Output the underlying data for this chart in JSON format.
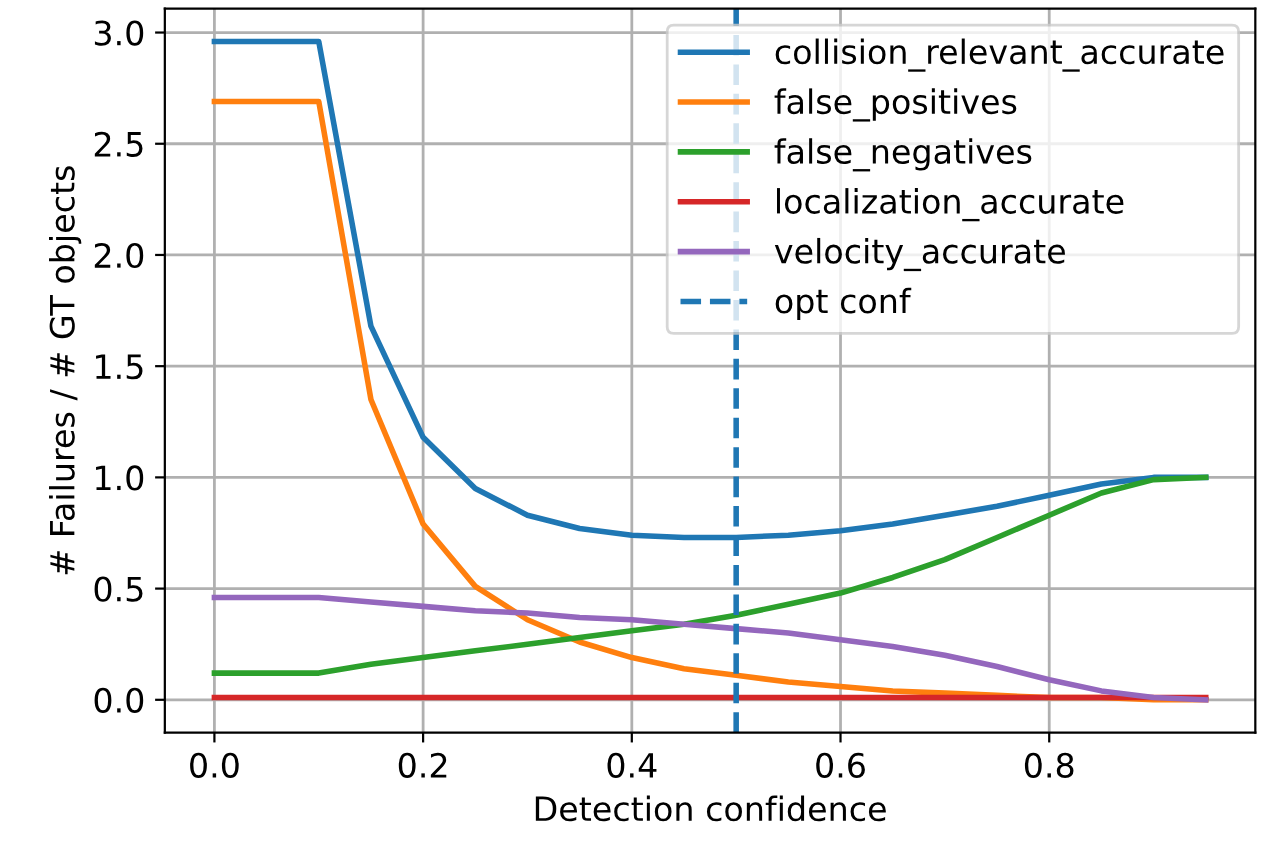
{
  "chart_data": {
    "type": "line",
    "xlabel": "Detection confidence",
    "ylabel": "# Failures / # GT objects",
    "x": [
      0,
      0.05,
      0.1,
      0.15,
      0.2,
      0.25,
      0.3,
      0.35,
      0.4,
      0.45,
      0.5,
      0.55,
      0.6,
      0.65,
      0.7,
      0.75,
      0.8,
      0.85,
      0.9,
      0.95
    ],
    "series": [
      {
        "name": "collision_relevant_accurate",
        "color": "#1f77b4",
        "values": [
          2.96,
          2.96,
          2.96,
          1.68,
          1.18,
          0.95,
          0.83,
          0.77,
          0.74,
          0.73,
          0.73,
          0.74,
          0.76,
          0.79,
          0.83,
          0.87,
          0.92,
          0.97,
          1.0,
          1.0
        ]
      },
      {
        "name": "false_positives",
        "color": "#ff7f0e",
        "values": [
          2.69,
          2.69,
          2.69,
          1.35,
          0.79,
          0.51,
          0.36,
          0.26,
          0.19,
          0.14,
          0.11,
          0.08,
          0.06,
          0.04,
          0.03,
          0.02,
          0.01,
          0.01,
          0,
          0
        ]
      },
      {
        "name": "false_negatives",
        "color": "#2ca02c",
        "values": [
          0.12,
          0.12,
          0.12,
          0.16,
          0.19,
          0.22,
          0.25,
          0.28,
          0.31,
          0.34,
          0.38,
          0.43,
          0.48,
          0.55,
          0.63,
          0.73,
          0.83,
          0.93,
          0.99,
          1.0
        ]
      },
      {
        "name": "localization_accurate",
        "color": "#d62728",
        "values": [
          0.01,
          0.01,
          0.01,
          0.01,
          0.01,
          0.01,
          0.01,
          0.01,
          0.01,
          0.01,
          0.01,
          0.01,
          0.01,
          0.01,
          0.01,
          0.01,
          0.01,
          0.01,
          0.01,
          0.01
        ]
      },
      {
        "name": "velocity_accurate",
        "color": "#9467bd",
        "values": [
          0.46,
          0.46,
          0.46,
          0.44,
          0.42,
          0.4,
          0.39,
          0.37,
          0.36,
          0.34,
          0.32,
          0.3,
          0.27,
          0.24,
          0.2,
          0.15,
          0.09,
          0.04,
          0.01,
          0
        ]
      }
    ],
    "ref_lines": [
      {
        "axis": "x",
        "value": 0.5,
        "label": "opt conf",
        "color": "#1f77b4",
        "line_style": "dashed"
      }
    ],
    "xlim": [
      -0.0475,
      0.9975
    ],
    "ylim": [
      -0.148,
      3.108
    ],
    "xticks": [
      {
        "value": 0,
        "label": "0.0"
      },
      0.2,
      0.4,
      0.6,
      0.8
    ],
    "yticks": [
      {
        "value": 0,
        "label": "0.0"
      },
      0.5,
      {
        "value": 1,
        "label": "1.0"
      },
      1.5,
      {
        "value": 2,
        "label": "2.0"
      },
      2.5,
      {
        "value": 3,
        "label": "3.0"
      }
    ],
    "grid": true,
    "legend": "top right",
    "marker": "none",
    "line_style": "solid"
  }
}
